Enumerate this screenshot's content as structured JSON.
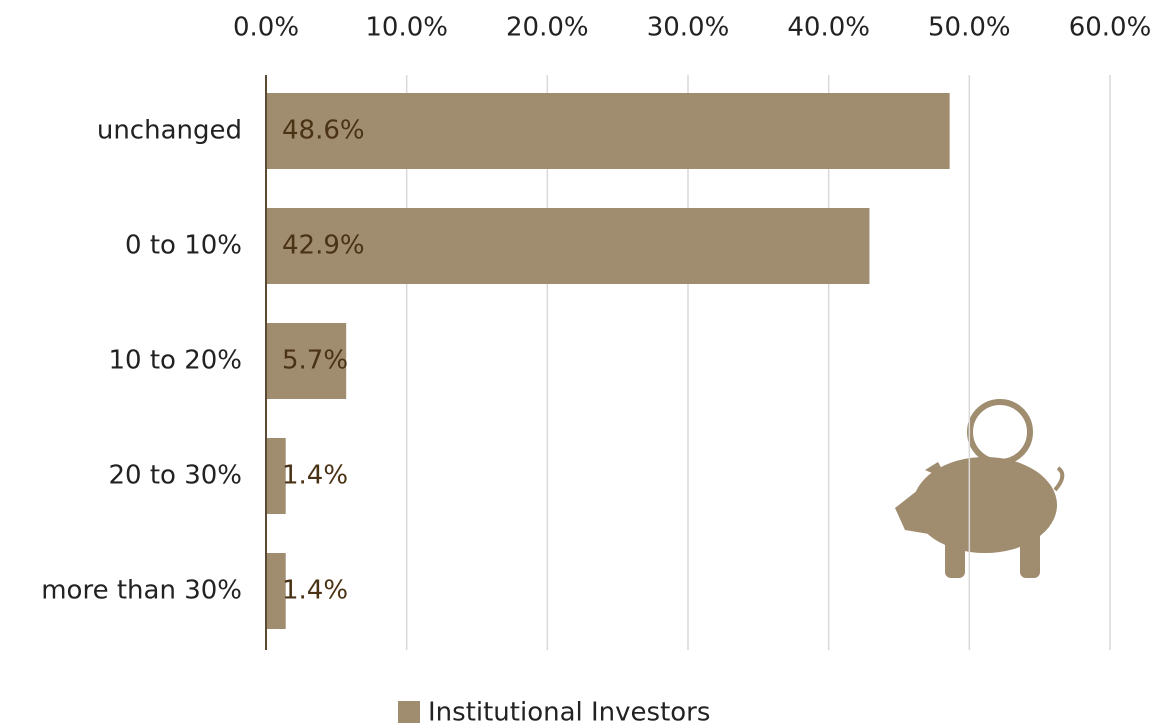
{
  "chart_data": {
    "type": "barh",
    "categories": [
      "unchanged",
      "0 to 10%",
      "10 to 20%",
      "20 to 30%",
      "more than 30%"
    ],
    "series": [
      {
        "name": "Institutional Investors",
        "color": "#a08c6e",
        "values": [
          48.6,
          42.9,
          5.7,
          1.4,
          1.4
        ],
        "value_labels": [
          "48.6%",
          "42.9%",
          "5.7%",
          "1.4%",
          "1.4%"
        ]
      }
    ],
    "xlim": [
      0,
      60
    ],
    "xticks": [
      {
        "value": 0,
        "label": "0.0%"
      },
      {
        "value": 10,
        "label": "10.0%"
      },
      {
        "value": 20,
        "label": "20.0%"
      },
      {
        "value": 30,
        "label": "30.0%"
      },
      {
        "value": 40,
        "label": "40.0%"
      },
      {
        "value": 50,
        "label": "50.0%"
      },
      {
        "value": 60,
        "label": "60.0%"
      }
    ],
    "grid": true,
    "legend": "bottom"
  }
}
